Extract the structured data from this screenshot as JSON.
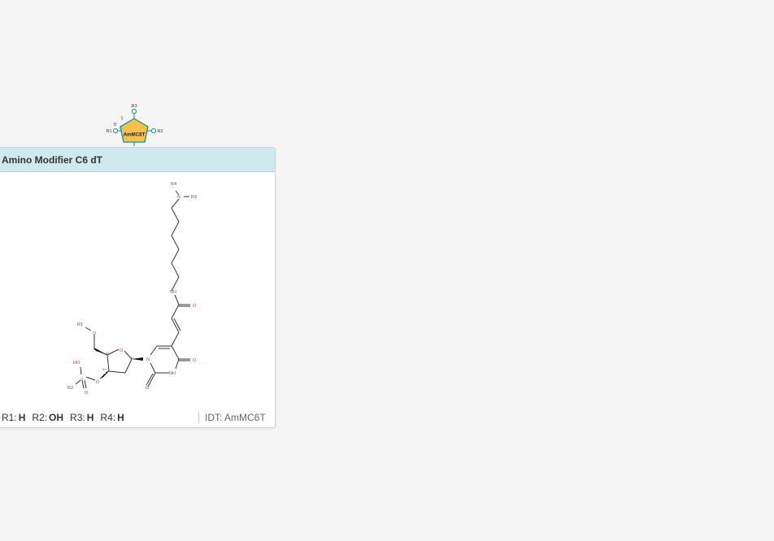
{
  "monomer": {
    "symbol": "AmMC6T",
    "r1": "R1",
    "r2": "R2",
    "r3": "R3",
    "prime_label": "5'",
    "one_label": "1",
    "fill_color": "#f6c04e",
    "border_color": "#1a8f8a"
  },
  "card": {
    "title": "Amino Modifier C6 dT",
    "idt_label": "IDT: AmMC6T"
  },
  "r_groups": [
    {
      "label": "R1:",
      "value": "H"
    },
    {
      "label": "R2:",
      "value": "OH"
    },
    {
      "label": "R3:",
      "value": "H"
    },
    {
      "label": "R4:",
      "value": "H"
    }
  ],
  "structure": {
    "atoms": {
      "r4": "R4",
      "n_amine": "N",
      "r3": "R3",
      "nh_amide": "NH",
      "o_amide": "O",
      "o_ring4": "O",
      "nh_ring": "NH",
      "o_ring2": "O",
      "n_ring": "N",
      "r1": "R1",
      "o5": "O",
      "o_sugar": "O",
      "ho": "HO",
      "p": "P",
      "o3": "O",
      "o_p": "O",
      "r2": "R2",
      "stereo1": "&1",
      "stereo2": "&1",
      "stereo3": "&1"
    },
    "colors": {
      "oxygen": "#e0352b",
      "nitrogen": "#3d6fd6",
      "phosphorus": "#d98a1f",
      "bond": "#333333",
      "rgroup": "#555555"
    }
  }
}
